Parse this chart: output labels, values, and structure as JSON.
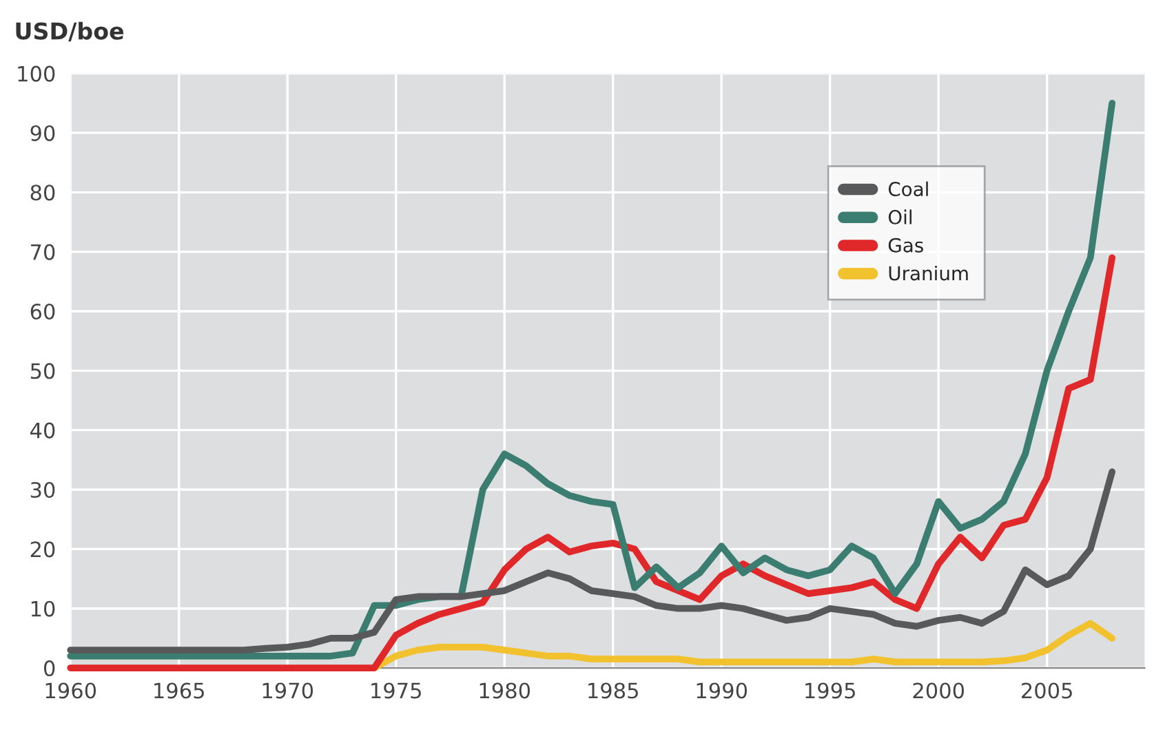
{
  "chart_data": {
    "type": "line",
    "ylabel": "USD/boe",
    "x": [
      1960,
      1961,
      1962,
      1963,
      1964,
      1965,
      1966,
      1967,
      1968,
      1969,
      1970,
      1971,
      1972,
      1973,
      1974,
      1975,
      1976,
      1977,
      1978,
      1979,
      1980,
      1981,
      1982,
      1983,
      1984,
      1985,
      1986,
      1987,
      1988,
      1989,
      1990,
      1991,
      1992,
      1993,
      1994,
      1995,
      1996,
      1997,
      1998,
      1999,
      2000,
      2001,
      2002,
      2003,
      2004,
      2005,
      2006,
      2007,
      2008
    ],
    "series": [
      {
        "name": "Coal",
        "color": "#58595b",
        "values": [
          3,
          3,
          3,
          3,
          3,
          3,
          3,
          3,
          3,
          3.3,
          3.5,
          4,
          5,
          5,
          6,
          11.5,
          12,
          12,
          12,
          12.5,
          13,
          14.5,
          16,
          15,
          13,
          12.5,
          12,
          10.5,
          10,
          10,
          10.5,
          10,
          9,
          8,
          8.5,
          10,
          9.5,
          9,
          7.5,
          7,
          8,
          8.5,
          7.5,
          9.5,
          16.5,
          14,
          15.5,
          20,
          33
        ]
      },
      {
        "name": "Oil",
        "color": "#3b7d70",
        "values": [
          2,
          2,
          2,
          2,
          2,
          2,
          2,
          2,
          2,
          2,
          2,
          2,
          2,
          2.5,
          10.5,
          10.5,
          11.5,
          12,
          12,
          30,
          36,
          34,
          31,
          29,
          28,
          27.5,
          13.5,
          17,
          13.5,
          16,
          20.5,
          16,
          18.5,
          16.5,
          15.5,
          16.5,
          20.5,
          18.5,
          12.5,
          17.5,
          28,
          23.5,
          25,
          28,
          36,
          50,
          60,
          69,
          95
        ]
      },
      {
        "name": "Gas",
        "color": "#e0282a",
        "values": [
          0,
          0,
          0,
          0,
          0,
          0,
          0,
          0,
          0,
          0,
          0,
          0,
          0,
          0,
          0,
          5.5,
          7.5,
          9,
          10,
          11,
          16.5,
          20,
          22,
          19.5,
          20.5,
          21,
          20,
          14.5,
          13,
          11.5,
          15.5,
          17.5,
          15.5,
          14,
          12.5,
          13,
          13.5,
          14.5,
          11.5,
          10,
          17.5,
          22,
          18.5,
          24,
          25,
          32,
          47,
          48.5,
          69
        ]
      },
      {
        "name": "Uranium",
        "color": "#f2c12e",
        "values": [
          null,
          null,
          null,
          null,
          null,
          null,
          null,
          null,
          null,
          null,
          null,
          null,
          null,
          null,
          0,
          2,
          3,
          3.5,
          3.5,
          3.5,
          3,
          2.5,
          2,
          2,
          1.5,
          1.5,
          1.5,
          1.5,
          1.5,
          1,
          1,
          1,
          1,
          1,
          1,
          1,
          1,
          1.5,
          1,
          1,
          1,
          1,
          1,
          1.2,
          1.7,
          3,
          5.5,
          7.5,
          5
        ]
      }
    ],
    "xlim": [
      1960,
      2009.5
    ],
    "xticks": [
      1960,
      1965,
      1970,
      1975,
      1980,
      1985,
      1990,
      1995,
      2000,
      2005
    ],
    "ylim": [
      0,
      100
    ],
    "yticks": [
      0,
      10,
      20,
      30,
      40,
      50,
      60,
      70,
      80,
      90,
      100
    ],
    "grid": true,
    "legend": "top right",
    "marker": "none",
    "line_style": "solid"
  }
}
